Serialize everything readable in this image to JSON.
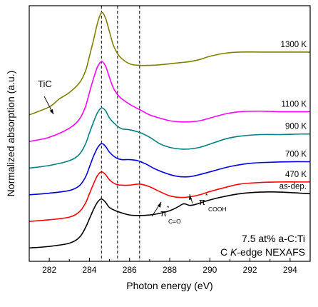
{
  "chart_data": {
    "type": "line",
    "xlabel": "Photon energy (eV)",
    "ylabel": "Normalized absorption (a.u.)",
    "xlim": [
      281,
      295
    ],
    "x_ticks": [
      282,
      284,
      286,
      288,
      290,
      292,
      294
    ],
    "y_ticks_shown": false,
    "grid": false,
    "legend": "inline labels at right end of each curve",
    "reference_lines_x": [
      284.6,
      285.4,
      286.5
    ],
    "inset_text": {
      "line1": "7.5 at% a-C:Ti",
      "line2_prefix": "C ",
      "line2_italic": "K",
      "line2_suffix": "-edge NEXAFS"
    },
    "annotations": [
      {
        "id": "tic",
        "text": "TiC",
        "x": 282.3,
        "y_series": "1300 K"
      },
      {
        "id": "pi-co",
        "text": "π",
        "sup": "*",
        "sub": "C=O",
        "x": 286.5
      },
      {
        "id": "pi-cooh",
        "text": "π",
        "sup": "*",
        "sub": "COOH",
        "x": 288.7
      }
    ],
    "series": [
      {
        "name": "as-dep.",
        "color": "#000000",
        "offset": 0.0,
        "x": [
          281,
          282,
          283,
          283.5,
          283.8,
          284.0,
          284.2,
          284.4,
          284.6,
          284.8,
          285.0,
          285.3,
          285.6,
          286.0,
          286.5,
          287.0,
          287.5,
          288.0,
          288.4,
          288.7,
          289.0,
          289.3,
          289.8,
          290.5,
          291.5,
          292.5,
          293.5,
          294.5,
          295
        ],
        "y": [
          0.0,
          0.03,
          0.09,
          0.2,
          0.38,
          0.55,
          0.72,
          0.86,
          0.92,
          0.86,
          0.76,
          0.7,
          0.66,
          0.62,
          0.61,
          0.62,
          0.65,
          0.7,
          0.77,
          0.83,
          0.8,
          0.82,
          0.88,
          0.95,
          1.02,
          1.05,
          1.05,
          1.03,
          1.02
        ]
      },
      {
        "name": "470 K",
        "color": "#ff0000",
        "offset": 0.5,
        "x": [
          281,
          282,
          283,
          283.5,
          283.8,
          284.0,
          284.2,
          284.4,
          284.6,
          284.8,
          285.0,
          285.3,
          285.6,
          286.0,
          286.5,
          287.0,
          287.5,
          288.0,
          288.5,
          289.0,
          289.5,
          290.0,
          290.8,
          291.5,
          292.5,
          293.5,
          294.5,
          295
        ],
        "y": [
          0.0,
          0.03,
          0.08,
          0.18,
          0.34,
          0.52,
          0.7,
          0.86,
          0.93,
          0.88,
          0.78,
          0.7,
          0.68,
          0.68,
          0.7,
          0.65,
          0.56,
          0.48,
          0.45,
          0.46,
          0.5,
          0.56,
          0.64,
          0.7,
          0.73,
          0.74,
          0.74,
          0.74
        ]
      },
      {
        "name": "700 K",
        "color": "#0000e0",
        "offset": 1.0,
        "x": [
          281,
          282,
          283,
          283.5,
          283.8,
          284.0,
          284.2,
          284.4,
          284.6,
          284.8,
          285.0,
          285.3,
          285.6,
          286.0,
          286.4,
          286.8,
          287.3,
          288.0,
          288.5,
          289.0,
          289.5,
          290.2,
          291,
          292,
          293,
          294,
          295
        ],
        "y": [
          0.0,
          0.03,
          0.08,
          0.17,
          0.33,
          0.52,
          0.72,
          0.88,
          0.96,
          0.91,
          0.8,
          0.7,
          0.66,
          0.66,
          0.64,
          0.58,
          0.48,
          0.38,
          0.34,
          0.34,
          0.38,
          0.45,
          0.53,
          0.59,
          0.61,
          0.62,
          0.62
        ]
      },
      {
        "name": "900 K",
        "color": "#008080",
        "offset": 1.5,
        "x": [
          281,
          282,
          283,
          283.5,
          283.8,
          284.0,
          284.2,
          284.4,
          284.6,
          284.8,
          285.0,
          285.3,
          285.6,
          286.0,
          286.5,
          287.0,
          287.5,
          288,
          288.5,
          289,
          289.5,
          290,
          290.8,
          291.5,
          292.5,
          293.5,
          294.5,
          295
        ],
        "y": [
          0.0,
          0.05,
          0.14,
          0.26,
          0.45,
          0.66,
          0.86,
          1.04,
          1.13,
          1.08,
          0.94,
          0.82,
          0.74,
          0.72,
          0.67,
          0.58,
          0.46,
          0.39,
          0.36,
          0.36,
          0.39,
          0.45,
          0.55,
          0.6,
          0.63,
          0.63,
          0.64,
          0.64
        ]
      },
      {
        "name": "1100 K",
        "color": "#ff00ff",
        "offset": 2.0,
        "x": [
          281,
          282,
          283,
          283.5,
          283.8,
          284.0,
          284.2,
          284.4,
          284.6,
          284.8,
          285.0,
          285.2,
          285.5,
          286.0,
          286.5,
          287.0,
          287.5,
          288,
          288.5,
          289,
          289.5,
          290,
          290.8,
          291.5,
          292.5,
          293.5,
          294.5,
          295
        ],
        "y": [
          0.0,
          0.08,
          0.25,
          0.42,
          0.65,
          0.92,
          1.18,
          1.4,
          1.5,
          1.42,
          1.2,
          1.0,
          0.84,
          0.7,
          0.6,
          0.5,
          0.44,
          0.39,
          0.37,
          0.37,
          0.39,
          0.44,
          0.52,
          0.56,
          0.57,
          0.56,
          0.56,
          0.56
        ]
      },
      {
        "name": "1300 K",
        "color": "#808000",
        "offset": 2.5,
        "x": [
          281,
          282,
          282.5,
          283,
          283.5,
          283.8,
          284.0,
          284.2,
          284.4,
          284.6,
          284.8,
          285.0,
          285.2,
          285.5,
          286.0,
          286.5,
          287.0,
          287.5,
          288,
          288.5,
          289,
          289.5,
          290,
          290.8,
          291.5,
          292.5,
          293.5,
          294.5,
          295
        ],
        "y": [
          0.0,
          0.15,
          0.3,
          0.42,
          0.6,
          0.82,
          1.1,
          1.4,
          1.72,
          1.92,
          1.82,
          1.56,
          1.3,
          1.1,
          0.96,
          0.93,
          0.93,
          0.94,
          0.96,
          0.98,
          1.0,
          1.04,
          1.1,
          1.16,
          1.18,
          1.18,
          1.18,
          1.18,
          1.18
        ]
      }
    ]
  }
}
